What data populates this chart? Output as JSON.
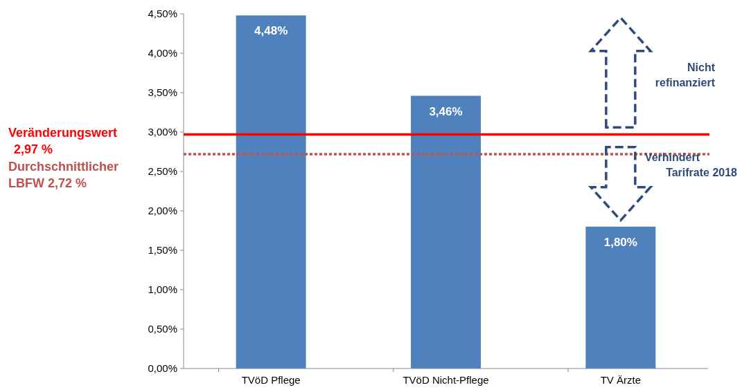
{
  "chart_data": {
    "type": "bar",
    "categories": [
      "TVöD Pflege",
      "TVöD Nicht-Pflege",
      "TV Ärzte"
    ],
    "values": [
      4.48,
      3.46,
      1.8
    ],
    "color": "#4f81bd",
    "value_labels": [
      "4,48%",
      "3,46%",
      "1,80%"
    ],
    "ylim": [
      0,
      4.5
    ],
    "yticks": [
      {
        "value": 0,
        "label": "0,00%"
      },
      {
        "value": 0.5,
        "label": "0,50%"
      },
      {
        "value": 1,
        "label": "1,00%"
      },
      {
        "value": 1.5,
        "label": "1,50%"
      },
      {
        "value": 2,
        "label": "2,00%"
      },
      {
        "value": 2.5,
        "label": "2,50%"
      },
      {
        "value": 3,
        "label": "3,00%"
      },
      {
        "value": 3.5,
        "label": "3,50%"
      },
      {
        "value": 4,
        "label": "4,00%"
      },
      {
        "value": 4.5,
        "label": "4,50%"
      }
    ],
    "ref_lines": [
      {
        "axis": "y",
        "value": 2.97,
        "label": "Veränderungswert\n2,97 %",
        "color": "#ff0000",
        "line_style": "solid"
      },
      {
        "axis": "y",
        "value": 2.72,
        "label": "Durchschnittlicher\nLBFW 2,72 %",
        "color": "#c0504d",
        "line_style": "dotted"
      }
    ],
    "annotations": [
      "Nicht\nrefinanziert",
      "Verhindert\nTarifrate 2018"
    ]
  }
}
